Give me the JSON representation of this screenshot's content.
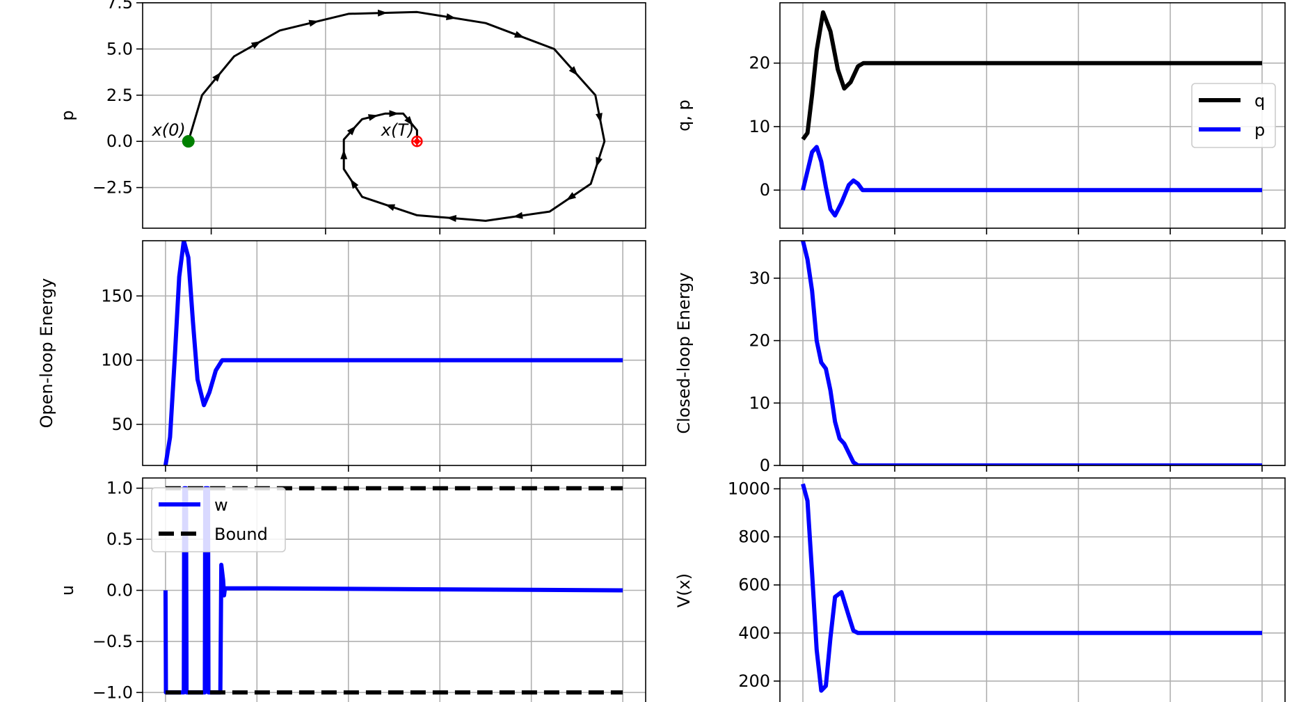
{
  "chart_data": [
    {
      "id": "phase",
      "type": "line",
      "xlabel": "",
      "ylabel": "p",
      "xlim": [
        -1,
        10
      ],
      "ylim": [
        -4.7,
        7.5
      ],
      "yticks": [
        -2.5,
        0.0,
        2.5,
        5.0,
        7.5
      ],
      "ytick_labels": [
        "−2.5",
        "0.0",
        "2.5",
        "5.0",
        "7.5"
      ],
      "xticks": [
        0.5,
        3,
        5.5,
        8
      ],
      "grid": true,
      "series": [
        {
          "color": "#000000",
          "width": 3,
          "arrows": true,
          "points": [
            [
              0,
              0
            ],
            [
              0.3,
              2.5
            ],
            [
              1.0,
              4.6
            ],
            [
              2.0,
              6.0
            ],
            [
              3.5,
              6.9
            ],
            [
              5.0,
              7.0
            ],
            [
              6.5,
              6.4
            ],
            [
              8.0,
              5.0
            ],
            [
              8.9,
              2.5
            ],
            [
              9.1,
              0.0
            ],
            [
              8.8,
              -2.3
            ],
            [
              7.9,
              -3.8
            ],
            [
              6.5,
              -4.3
            ],
            [
              5.0,
              -4.0
            ],
            [
              3.8,
              -3.0
            ],
            [
              3.4,
              -1.5
            ],
            [
              3.4,
              0.1
            ],
            [
              3.8,
              1.2
            ],
            [
              4.3,
              1.5
            ],
            [
              4.7,
              1.5
            ],
            [
              5.0,
              0.6
            ],
            [
              5.0,
              0.0
            ]
          ]
        }
      ],
      "markers": [
        {
          "x": 0,
          "y": 0,
          "color": "#008000",
          "label": "x(0)"
        },
        {
          "x": 5,
          "y": 0,
          "color": "#ff0000",
          "label": "x(T)"
        }
      ]
    },
    {
      "id": "qp",
      "type": "line",
      "xlabel": "",
      "ylabel": "q, p",
      "xlim": [
        -0.25,
        5.25
      ],
      "ylim": [
        -6,
        29.5
      ],
      "yticks": [
        0,
        10,
        20
      ],
      "ytick_labels": [
        "0",
        "10",
        "20"
      ],
      "xticks": [
        0,
        1,
        2,
        3,
        4,
        5
      ],
      "grid": true,
      "legend": "right",
      "series": [
        {
          "name": "q",
          "color": "#000000",
          "width": 6,
          "points": [
            [
              0,
              8
            ],
            [
              0.05,
              9
            ],
            [
              0.1,
              15
            ],
            [
              0.15,
              22
            ],
            [
              0.22,
              28
            ],
            [
              0.3,
              25
            ],
            [
              0.38,
              19
            ],
            [
              0.45,
              16
            ],
            [
              0.52,
              17
            ],
            [
              0.6,
              19.5
            ],
            [
              0.66,
              20
            ],
            [
              1,
              20
            ],
            [
              5,
              20
            ]
          ]
        },
        {
          "name": "p",
          "color": "#0000ff",
          "width": 6,
          "points": [
            [
              0,
              0
            ],
            [
              0.05,
              3
            ],
            [
              0.1,
              6
            ],
            [
              0.15,
              6.8
            ],
            [
              0.2,
              4.5
            ],
            [
              0.25,
              0.5
            ],
            [
              0.3,
              -3
            ],
            [
              0.35,
              -4
            ],
            [
              0.42,
              -2
            ],
            [
              0.5,
              0.8
            ],
            [
              0.55,
              1.5
            ],
            [
              0.6,
              1
            ],
            [
              0.65,
              0
            ],
            [
              1,
              0
            ],
            [
              5,
              0
            ]
          ]
        }
      ]
    },
    {
      "id": "open-loop",
      "type": "line",
      "xlabel": "",
      "ylabel": "Open-loop Energy",
      "xlim": [
        -0.25,
        5.25
      ],
      "ylim": [
        18,
        193
      ],
      "yticks": [
        50,
        100,
        150
      ],
      "ytick_labels": [
        "50",
        "100",
        "150"
      ],
      "xticks": [
        0,
        1,
        2,
        3,
        4,
        5
      ],
      "grid": true,
      "series": [
        {
          "color": "#0000ff",
          "width": 6,
          "points": [
            [
              0,
              18
            ],
            [
              0.05,
              40
            ],
            [
              0.1,
              100
            ],
            [
              0.15,
              165
            ],
            [
              0.2,
              193
            ],
            [
              0.25,
              180
            ],
            [
              0.3,
              130
            ],
            [
              0.35,
              85
            ],
            [
              0.42,
              65
            ],
            [
              0.48,
              75
            ],
            [
              0.55,
              92
            ],
            [
              0.62,
              100
            ],
            [
              1,
              100
            ],
            [
              5,
              100
            ]
          ]
        }
      ]
    },
    {
      "id": "closed-loop",
      "type": "line",
      "xlabel": "",
      "ylabel": "Closed-loop Energy",
      "xlim": [
        -0.25,
        5.25
      ],
      "ylim": [
        0,
        36
      ],
      "yticks": [
        0,
        10,
        20,
        30
      ],
      "ytick_labels": [
        "0",
        "10",
        "20",
        "30"
      ],
      "xticks": [
        0,
        1,
        2,
        3,
        4,
        5
      ],
      "grid": true,
      "series": [
        {
          "color": "#0000ff",
          "width": 6,
          "points": [
            [
              0,
              36
            ],
            [
              0.05,
              33
            ],
            [
              0.1,
              28
            ],
            [
              0.15,
              20
            ],
            [
              0.2,
              16.5
            ],
            [
              0.25,
              15.5
            ],
            [
              0.3,
              12
            ],
            [
              0.35,
              7
            ],
            [
              0.4,
              4.3
            ],
            [
              0.45,
              3.5
            ],
            [
              0.5,
              2
            ],
            [
              0.55,
              0.5
            ],
            [
              0.6,
              0
            ],
            [
              1,
              0
            ],
            [
              5,
              0
            ]
          ]
        }
      ]
    },
    {
      "id": "control",
      "type": "line",
      "xlabel": "",
      "ylabel": "u",
      "xlim": [
        -0.25,
        5.25
      ],
      "ylim": [
        -1.1,
        1.1
      ],
      "yticks": [
        -1.0,
        -0.5,
        0.0,
        0.5,
        1.0
      ],
      "ytick_labels": [
        "−1.0",
        "−0.5",
        "0.0",
        "0.5",
        "1.0"
      ],
      "xticks": [
        0,
        1,
        2,
        3,
        4,
        5
      ],
      "grid": true,
      "legend": "upper left",
      "series": [
        {
          "name": "w",
          "color": "#0000ff",
          "width": 6,
          "points": [
            [
              0,
              0
            ],
            [
              0.005,
              -1
            ],
            [
              0.2,
              -1
            ],
            [
              0.205,
              1
            ],
            [
              0.225,
              1
            ],
            [
              0.23,
              -1
            ],
            [
              0.43,
              -1
            ],
            [
              0.435,
              1
            ],
            [
              0.465,
              1
            ],
            [
              0.47,
              -1
            ],
            [
              0.6,
              -1
            ],
            [
              0.61,
              0.25
            ],
            [
              0.63,
              0.1
            ],
            [
              0.64,
              -0.05
            ],
            [
              0.65,
              0.02
            ],
            [
              1,
              0.02
            ],
            [
              5,
              0
            ]
          ]
        },
        {
          "name": "Bound",
          "color": "#000000",
          "width": 6,
          "dashed": true,
          "points": [
            [
              0,
              1
            ],
            [
              5,
              1
            ]
          ]
        },
        {
          "name": "Bound",
          "color": "#000000",
          "width": 6,
          "dashed": true,
          "points": [
            [
              0,
              -1
            ],
            [
              5,
              -1
            ]
          ]
        }
      ]
    },
    {
      "id": "value",
      "type": "line",
      "xlabel": "",
      "ylabel": "V(x)",
      "xlim": [
        -0.25,
        5.25
      ],
      "ylim": [
        110,
        1045
      ],
      "yticks": [
        200,
        400,
        600,
        800,
        1000
      ],
      "ytick_labels": [
        "200",
        "400",
        "600",
        "800",
        "1000"
      ],
      "xticks": [
        0,
        1,
        2,
        3,
        4,
        5
      ],
      "grid": true,
      "series": [
        {
          "color": "#0000ff",
          "width": 6,
          "points": [
            [
              0,
              1020
            ],
            [
              0.05,
              950
            ],
            [
              0.1,
              650
            ],
            [
              0.15,
              330
            ],
            [
              0.2,
              160
            ],
            [
              0.25,
              180
            ],
            [
              0.3,
              380
            ],
            [
              0.35,
              550
            ],
            [
              0.42,
              570
            ],
            [
              0.5,
              470
            ],
            [
              0.55,
              410
            ],
            [
              0.6,
              400
            ],
            [
              1,
              400
            ],
            [
              5,
              400
            ]
          ]
        }
      ]
    }
  ]
}
